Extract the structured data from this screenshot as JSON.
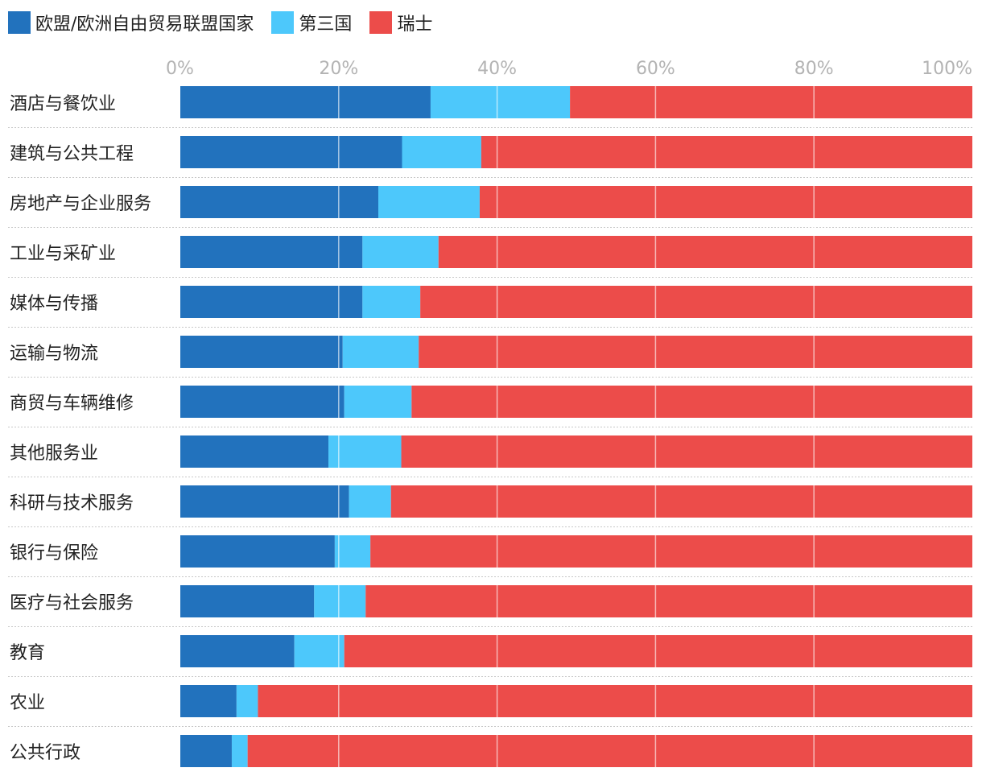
{
  "chart_data": {
    "type": "bar",
    "orientation": "horizontal",
    "stacked": true,
    "normalized": true,
    "title": "",
    "xlabel": "",
    "ylabel": "",
    "xlim": [
      0,
      100
    ],
    "x_ticks": [
      "0%",
      "20%",
      "40%",
      "60%",
      "80%",
      "100%"
    ],
    "x_tick_values": [
      0,
      20,
      40,
      60,
      80,
      100
    ],
    "grid": true,
    "legend_position": "top-left",
    "categories": [
      "酒店与餐饮业",
      "建筑与公共工程",
      "房地产与企业服务",
      "工业与采矿业",
      "媒体与传播",
      "运输与物流",
      "商贸与车辆维修",
      "其他服务业",
      "科研与技术服务",
      "银行与保险",
      "医疗与社会服务",
      "教育",
      "农业",
      "公共行政"
    ],
    "series": [
      {
        "name": "欧盟/欧洲自由贸易联盟国家",
        "color": "#2272bd",
        "values": [
          31.6,
          28.0,
          25.0,
          23.0,
          23.0,
          20.5,
          20.7,
          18.7,
          21.3,
          19.5,
          16.9,
          14.4,
          7.1,
          6.5
        ]
      },
      {
        "name": "第三国",
        "color": "#4dc8fb",
        "values": [
          17.6,
          10.0,
          12.8,
          9.6,
          7.3,
          9.6,
          8.5,
          9.2,
          5.3,
          4.5,
          6.5,
          6.3,
          2.7,
          2.0
        ]
      },
      {
        "name": "瑞士",
        "color": "#ec4c4a",
        "values": [
          50.8,
          62.0,
          62.2,
          67.4,
          69.7,
          69.9,
          70.8,
          72.1,
          73.4,
          76.0,
          76.6,
          79.3,
          90.2,
          91.5
        ]
      }
    ]
  }
}
